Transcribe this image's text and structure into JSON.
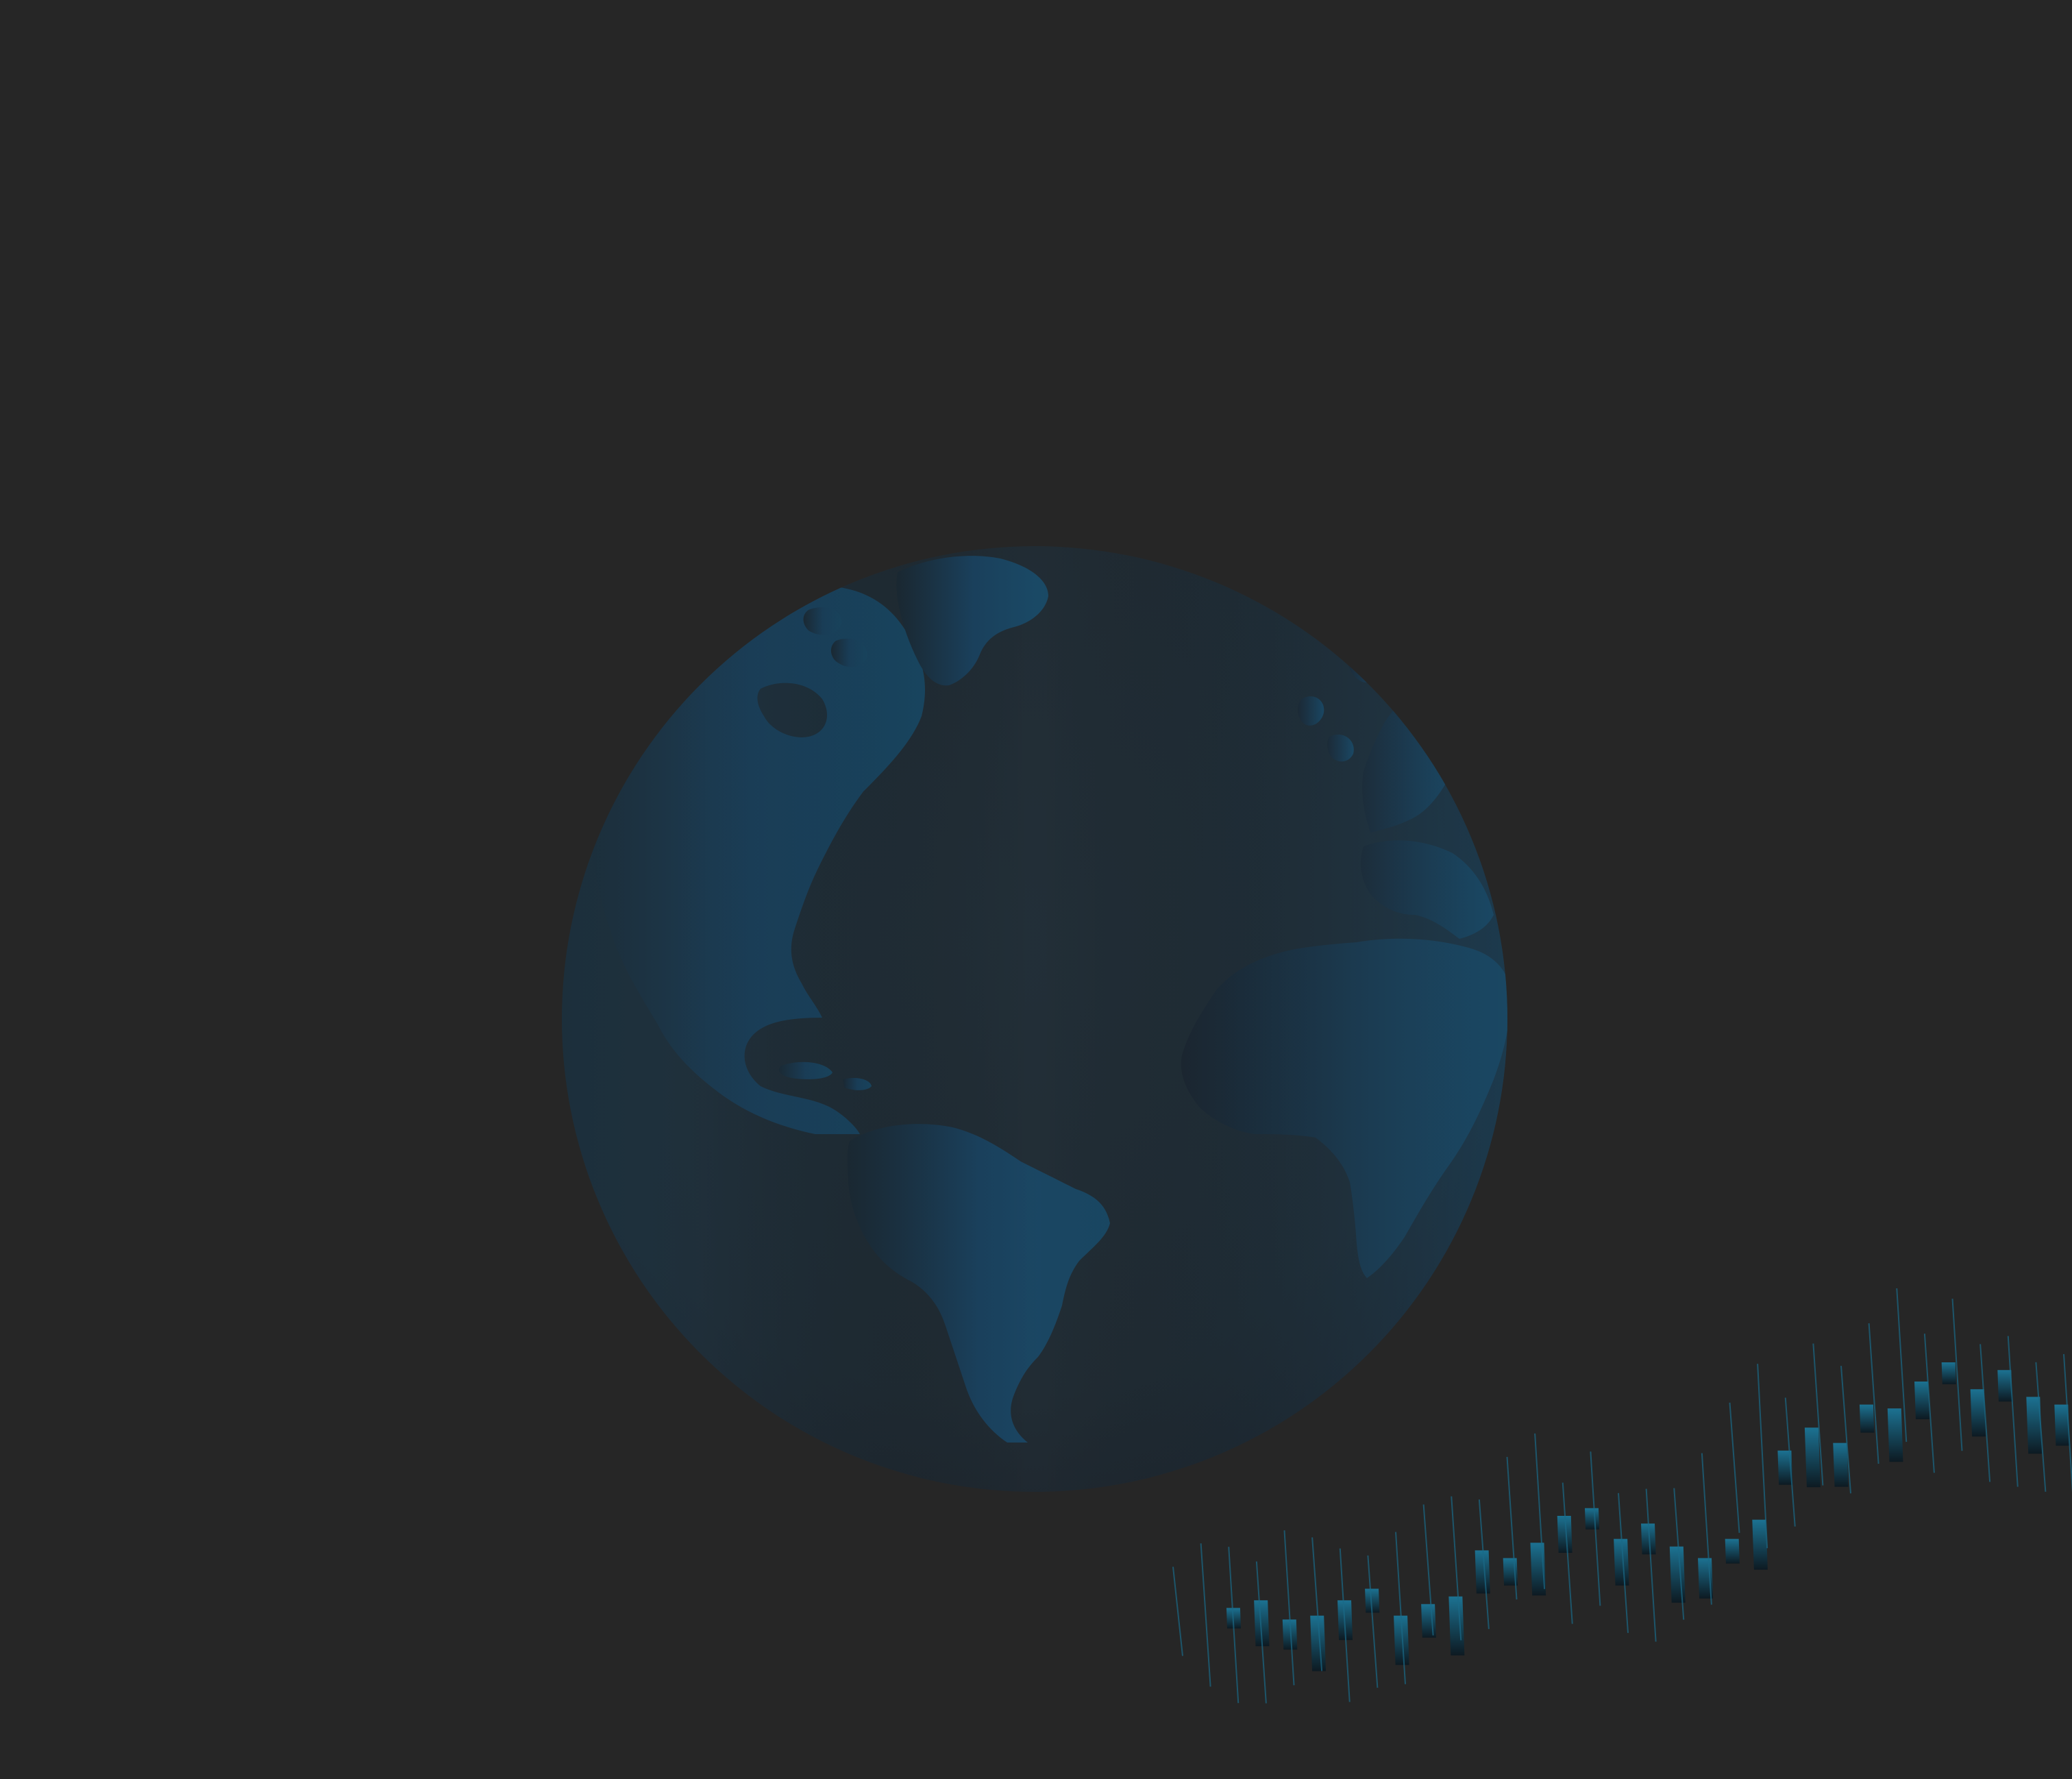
{
  "scene": {
    "background_color": "#262626",
    "globe": {
      "icon": "earth-globe-icon",
      "ocean_color": "#21303b",
      "land_color": "#1a3f58",
      "shadow_color": "#1e2a33"
    },
    "candlestick_decoration": {
      "icon": "candlestick-chart-icon",
      "body_color_top": "#1c6f8f",
      "body_color_bottom": "#0e1a22",
      "wick_color": "#1a6a88",
      "trend": [
        0.31,
        0.33,
        0.28,
        0.29,
        0.33,
        0.36,
        0.29,
        0.32,
        0.34,
        0.46,
        0.44,
        0.48,
        0.55,
        0.57,
        0.49,
        0.53,
        0.47,
        0.44,
        0.49,
        0.54,
        0.72,
        0.78,
        0.74,
        0.84,
        0.83,
        0.9,
        0.95,
        0.88,
        0.93,
        0.86,
        0.84,
        0.82,
        0.8
      ]
    }
  }
}
